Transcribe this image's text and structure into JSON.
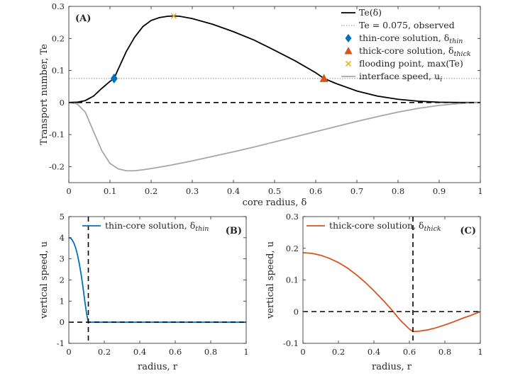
{
  "chart_data": [
    {
      "id": "A",
      "type": "line",
      "panel_label": "(A)",
      "xlabel": "core radius, δ",
      "ylabel": "Transport number, Te",
      "xlim": [
        0,
        1
      ],
      "ylim": [
        -0.25,
        0.3
      ],
      "xticks": [
        0,
        0.1,
        0.2,
        0.3,
        0.4,
        0.5,
        0.6,
        0.7,
        0.8,
        0.9,
        1
      ],
      "xtick_labels": [
        "0",
        "0.1",
        "0.2",
        "0.3",
        "0.4",
        "0.5",
        "0.6",
        "0.7",
        "0.8",
        "0.9",
        "1"
      ],
      "yticks": [
        -0.2,
        -0.1,
        0,
        0.1,
        0.2,
        0.3
      ],
      "ytick_labels": [
        "-0.2",
        "-0.1",
        "0",
        "0.1",
        "0.2",
        "0.3"
      ],
      "legend_position": "top-right",
      "series": [
        {
          "name": "Te(δ)",
          "color": "#000000",
          "style": "solid",
          "x": [
            0,
            0.02,
            0.04,
            0.06,
            0.08,
            0.1,
            0.11,
            0.12,
            0.14,
            0.16,
            0.18,
            0.2,
            0.22,
            0.24,
            0.255,
            0.27,
            0.3,
            0.35,
            0.4,
            0.45,
            0.5,
            0.55,
            0.6,
            0.62,
            0.65,
            0.7,
            0.75,
            0.8,
            0.85,
            0.9,
            0.95,
            1.0
          ],
          "values": [
            0,
            0.0008,
            0.006,
            0.02,
            0.044,
            0.066,
            0.075,
            0.104,
            0.16,
            0.204,
            0.237,
            0.256,
            0.265,
            0.269,
            0.27,
            0.269,
            0.262,
            0.244,
            0.221,
            0.195,
            0.163,
            0.13,
            0.093,
            0.075,
            0.059,
            0.036,
            0.02,
            0.01,
            0.004,
            0.001,
            0,
            0
          ]
        },
        {
          "name": "interface speed, u_i",
          "color": "#a6a6a6",
          "style": "solid",
          "x": [
            0,
            0.02,
            0.04,
            0.06,
            0.08,
            0.1,
            0.12,
            0.14,
            0.16,
            0.18,
            0.2,
            0.25,
            0.3,
            0.35,
            0.4,
            0.45,
            0.5,
            0.55,
            0.6,
            0.65,
            0.7,
            0.75,
            0.8,
            0.85,
            0.9,
            0.95,
            1.0
          ],
          "values": [
            0,
            -0.004,
            -0.03,
            -0.09,
            -0.15,
            -0.19,
            -0.207,
            -0.213,
            -0.213,
            -0.21,
            -0.206,
            -0.195,
            -0.182,
            -0.168,
            -0.154,
            -0.139,
            -0.123,
            -0.107,
            -0.091,
            -0.075,
            -0.059,
            -0.044,
            -0.03,
            -0.018,
            -0.009,
            -0.003,
            0
          ]
        },
        {
          "name": "Te = 0.075, observed",
          "color": "#a0a0a0",
          "style": "dotted",
          "x": [
            0,
            1
          ],
          "values": [
            0.075,
            0.075
          ]
        },
        {
          "name": "zero line",
          "color": "#000000",
          "style": "dashed",
          "x": [
            0,
            1
          ],
          "values": [
            0,
            0
          ]
        }
      ],
      "markers": [
        {
          "name": "thin-core solution, δ_thin",
          "shape": "diamond",
          "color": "#0072bd",
          "x": 0.11,
          "y": 0.075
        },
        {
          "name": "thick-core solution, δ_thick",
          "shape": "triangle",
          "color": "#d95319",
          "x": 0.62,
          "y": 0.075
        },
        {
          "name": "flooding point, max(Te)",
          "shape": "x",
          "color": "#edb120",
          "x": 0.255,
          "y": 0.27
        }
      ],
      "legend": [
        {
          "text": "Te(δ)",
          "type": "line-solid",
          "color": "#000000"
        },
        {
          "text": "Te = 0.075, observed",
          "type": "line-dotted",
          "color": "#a0a0a0"
        },
        {
          "text": "thin-core solution, δ",
          "sub": "thin",
          "type": "diamond",
          "color": "#0072bd"
        },
        {
          "text": "thick-core solution, δ",
          "sub": "thick",
          "type": "triangle",
          "color": "#d95319"
        },
        {
          "text": "flooding point, max(Te)",
          "type": "x",
          "color": "#edb120"
        },
        {
          "text": "interface speed, u",
          "sub": "i",
          "type": "line-solid",
          "color": "#a6a6a6"
        }
      ]
    },
    {
      "id": "B",
      "type": "line",
      "panel_label": "(B)",
      "xlabel": "radius, r",
      "ylabel": "vertical speed, u",
      "xlim": [
        0,
        1
      ],
      "ylim": [
        -1,
        5
      ],
      "xticks": [
        0,
        0.2,
        0.4,
        0.6,
        0.8,
        1
      ],
      "xtick_labels": [
        "0",
        "0.2",
        "0.4",
        "0.6",
        "0.8",
        "1"
      ],
      "yticks": [
        -1,
        0,
        1,
        2,
        3,
        4,
        5
      ],
      "ytick_labels": [
        "-1",
        "0",
        "1",
        "2",
        "3",
        "4",
        "5"
      ],
      "legend_position": "top-right",
      "vline_x": 0.11,
      "series": [
        {
          "name": "thin-core solution, δ_thin",
          "color": "#0072bd",
          "style": "solid",
          "x": [
            0,
            0.01,
            0.02,
            0.03,
            0.04,
            0.05,
            0.06,
            0.07,
            0.08,
            0.09,
            0.1,
            0.11,
            0.12,
            0.2,
            0.4,
            0.6,
            0.8,
            1.0
          ],
          "values": [
            4.0,
            3.98,
            3.88,
            3.72,
            3.48,
            3.15,
            2.73,
            2.23,
            1.65,
            1.0,
            0.42,
            0.0,
            0.0,
            0.0,
            0.0,
            0.0,
            0.0,
            0.0
          ]
        }
      ],
      "legend": [
        {
          "text": "thin-core solution, δ",
          "sub": "thin",
          "type": "line-solid",
          "color": "#0072bd"
        }
      ]
    },
    {
      "id": "C",
      "type": "line",
      "panel_label": "(C)",
      "xlabel": "radius, r",
      "ylabel": "vertical speed, u",
      "xlim": [
        0,
        1
      ],
      "ylim": [
        -0.1,
        0.3
      ],
      "xticks": [
        0,
        0.2,
        0.4,
        0.6,
        0.8,
        1
      ],
      "xtick_labels": [
        "0",
        "0.2",
        "0.4",
        "0.6",
        "0.8",
        "1"
      ],
      "yticks": [
        -0.1,
        0,
        0.1,
        0.2,
        0.3
      ],
      "ytick_labels": [
        "-0.1",
        "0",
        "0.1",
        "0.2",
        "0.3"
      ],
      "legend_position": "top-right",
      "vline_x": 0.62,
      "series": [
        {
          "name": "thick-core solution, δ_thick",
          "color": "#d95319",
          "style": "solid",
          "x": [
            0,
            0.05,
            0.1,
            0.15,
            0.2,
            0.25,
            0.3,
            0.35,
            0.4,
            0.45,
            0.5,
            0.55,
            0.6,
            0.62,
            0.65,
            0.7,
            0.75,
            0.8,
            0.85,
            0.9,
            0.95,
            1.0
          ],
          "values": [
            0.186,
            0.184,
            0.178,
            0.168,
            0.155,
            0.138,
            0.117,
            0.093,
            0.066,
            0.037,
            0.006,
            -0.028,
            -0.055,
            -0.063,
            -0.062,
            -0.058,
            -0.051,
            -0.042,
            -0.032,
            -0.021,
            -0.011,
            0.0
          ]
        },
        {
          "name": "zero line",
          "color": "#000000",
          "style": "dashed",
          "x": [
            0,
            1
          ],
          "values": [
            0,
            0
          ]
        }
      ],
      "legend": [
        {
          "text": "thick-core solution, δ",
          "sub": "thick",
          "type": "line-solid",
          "color": "#d95319"
        }
      ]
    }
  ]
}
